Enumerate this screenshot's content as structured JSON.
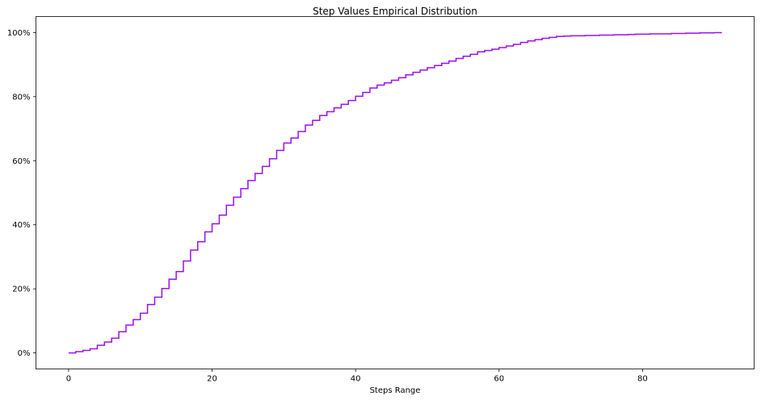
{
  "chart_data": {
    "type": "line",
    "drawstyle": "steps-post",
    "title": "Step Values Empirical Distribution",
    "xlabel": "Steps Range",
    "ylabel": "",
    "xlim": [
      -4.55,
      95.55
    ],
    "ylim": [
      -0.05,
      1.05
    ],
    "grid": false,
    "legend": "none",
    "line_color": "#9b10f0",
    "x_ticks": [
      0,
      20,
      40,
      60,
      80
    ],
    "x_tick_labels": [
      "0",
      "20",
      "40",
      "60",
      "80"
    ],
    "y_ticks": [
      0,
      0.2,
      0.4,
      0.6,
      0.8,
      1.0
    ],
    "y_tick_labels": [
      "0%",
      "20%",
      "40%",
      "60%",
      "80%",
      "100%"
    ],
    "series": [
      {
        "x": [
          0,
          1,
          2,
          3,
          4,
          5,
          6,
          7,
          8,
          9,
          10,
          11,
          12,
          13,
          14,
          15,
          16,
          17,
          18,
          19,
          20,
          21,
          22,
          23,
          24,
          25,
          26,
          27,
          28,
          29,
          30,
          31,
          32,
          33,
          34,
          35,
          36,
          37,
          38,
          39,
          40,
          41,
          42,
          43,
          44,
          45,
          46,
          47,
          48,
          49,
          50,
          51,
          52,
          53,
          54,
          55,
          56,
          57,
          58,
          59,
          60,
          61,
          62,
          63,
          64,
          65,
          66,
          67,
          68,
          69,
          70,
          71,
          72,
          73,
          74,
          75,
          76,
          77,
          78,
          79,
          80,
          81,
          82,
          83,
          84,
          85,
          86,
          87,
          88,
          89,
          90,
          91
        ],
        "y": [
          0.0,
          0.004,
          0.008,
          0.013,
          0.024,
          0.034,
          0.046,
          0.066,
          0.087,
          0.104,
          0.124,
          0.151,
          0.174,
          0.201,
          0.23,
          0.254,
          0.287,
          0.321,
          0.347,
          0.378,
          0.403,
          0.43,
          0.461,
          0.486,
          0.513,
          0.538,
          0.56,
          0.582,
          0.606,
          0.632,
          0.655,
          0.671,
          0.691,
          0.711,
          0.726,
          0.741,
          0.753,
          0.765,
          0.776,
          0.788,
          0.801,
          0.813,
          0.827,
          0.836,
          0.843,
          0.851,
          0.859,
          0.868,
          0.876,
          0.883,
          0.89,
          0.897,
          0.904,
          0.911,
          0.919,
          0.926,
          0.932,
          0.94,
          0.944,
          0.948,
          0.953,
          0.958,
          0.963,
          0.969,
          0.974,
          0.978,
          0.982,
          0.985,
          0.988,
          0.989,
          0.99,
          0.99,
          0.991,
          0.991,
          0.992,
          0.992,
          0.993,
          0.993,
          0.994,
          0.995,
          0.995,
          0.996,
          0.996,
          0.996,
          0.997,
          0.997,
          0.998,
          0.998,
          0.999,
          0.999,
          0.9995,
          1.0
        ]
      }
    ]
  }
}
